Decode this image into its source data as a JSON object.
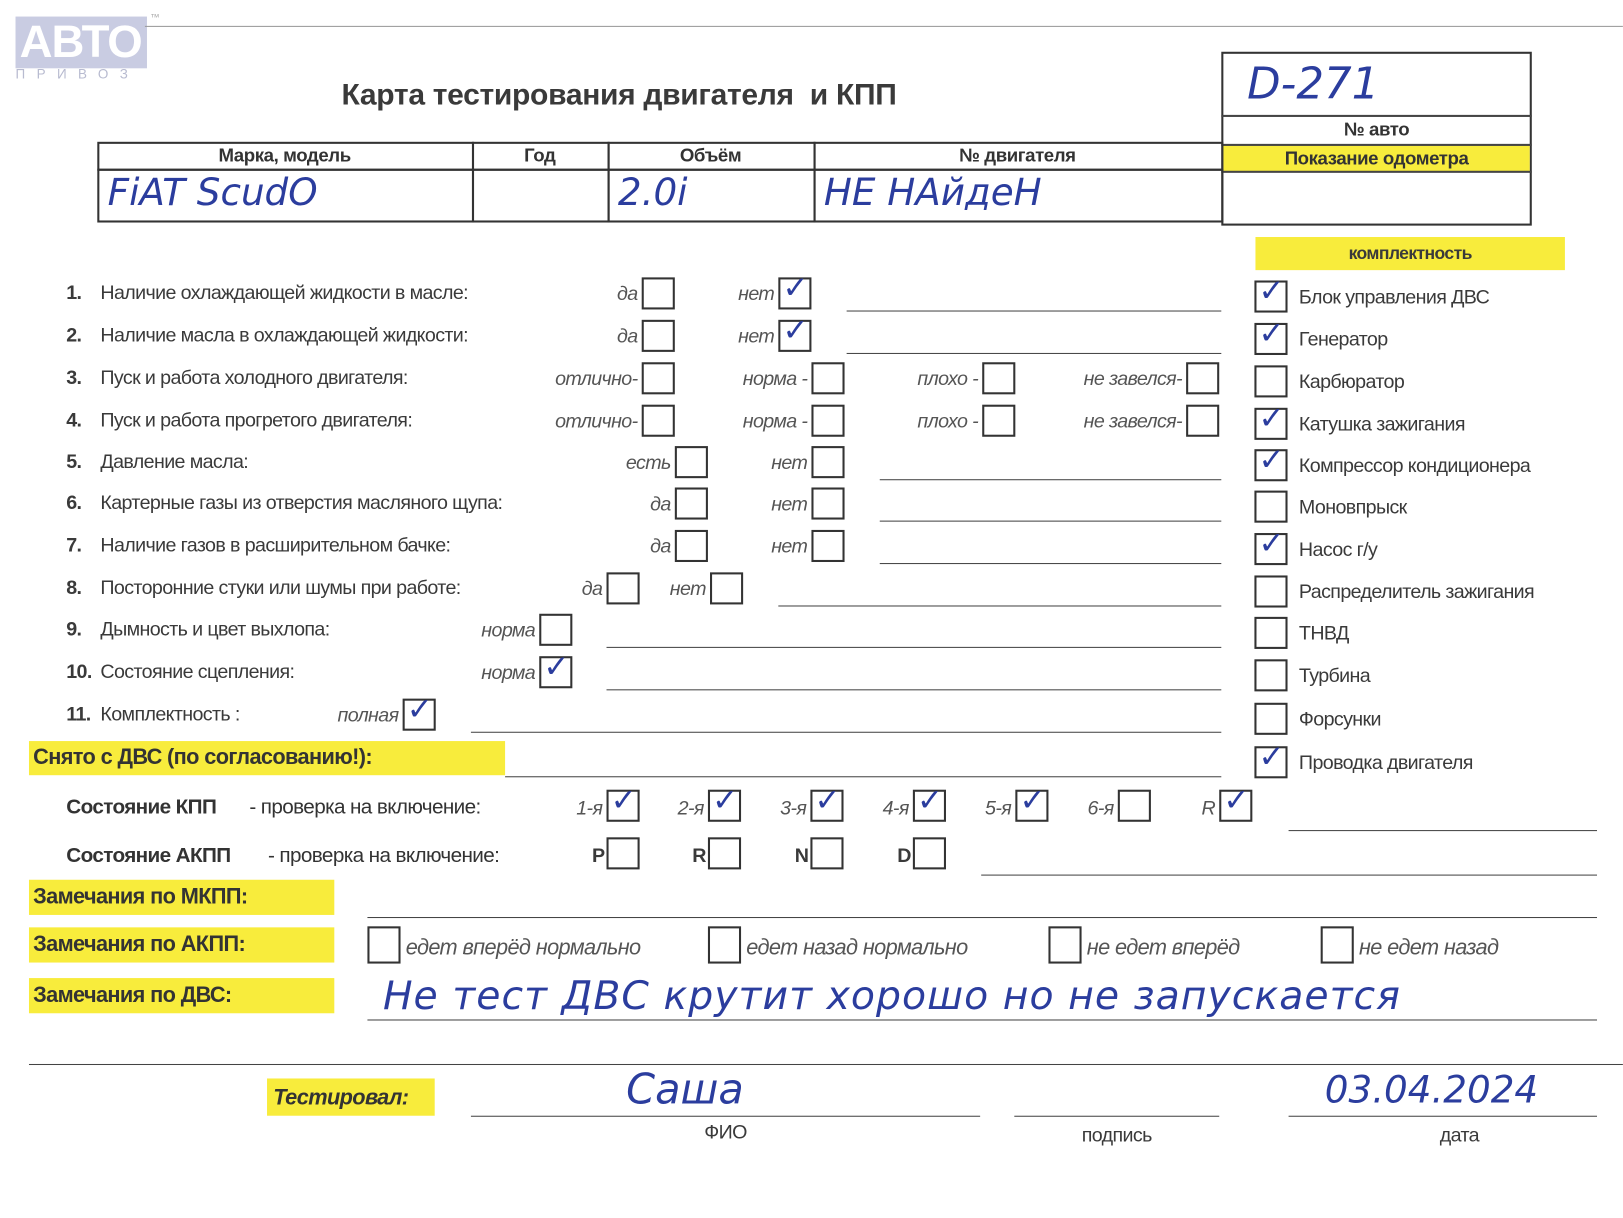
{
  "logo": {
    "text": "АВТО",
    "sub": "ПРИВОЗ",
    "tm": "™"
  },
  "title": "Карта тестирования двигателя  и КПП",
  "car_number": {
    "value": "D-271",
    "label": "№ авто"
  },
  "odometer": {
    "label": "Показание одометра",
    "value": ""
  },
  "vehicle_table": {
    "headers": [
      "Марка, модель",
      "Год",
      "Объём",
      "№ двигателя"
    ],
    "values": [
      "FiAT ScudO",
      "",
      "2.0i",
      "НЕ НАйдеН"
    ]
  },
  "questions": [
    {
      "num": "1.",
      "text": "Наличие охлаждающей жидкости в масле:",
      "options": [
        {
          "label": "да",
          "checked": false
        },
        {
          "label": "нет",
          "checked": true
        }
      ]
    },
    {
      "num": "2.",
      "text": "Наличие масла в охлаждающей жидкости:",
      "options": [
        {
          "label": "да",
          "checked": false
        },
        {
          "label": "нет",
          "checked": true
        }
      ]
    },
    {
      "num": "3.",
      "text": "Пуск и работа холодного двигателя:",
      "options": [
        {
          "label": "отлично-",
          "checked": false
        },
        {
          "label": "норма -",
          "checked": false
        },
        {
          "label": "плохо -",
          "checked": false
        },
        {
          "label": "не завелся-",
          "checked": false
        }
      ]
    },
    {
      "num": "4.",
      "text": "Пуск и работа прогретого двигателя:",
      "options": [
        {
          "label": "отлично-",
          "checked": false
        },
        {
          "label": "норма -",
          "checked": false
        },
        {
          "label": "плохо -",
          "checked": false
        },
        {
          "label": "не завелся-",
          "checked": false
        }
      ]
    },
    {
      "num": "5.",
      "text": "Давление масла:",
      "options": [
        {
          "label": "есть",
          "checked": false
        },
        {
          "label": "нет",
          "checked": false
        }
      ]
    },
    {
      "num": "6.",
      "text": "Картерные газы из отверстия масляного щупа:",
      "options": [
        {
          "label": "да",
          "checked": false
        },
        {
          "label": "нет",
          "checked": false
        }
      ]
    },
    {
      "num": "7.",
      "text": "Наличие газов в расширительном бачке:",
      "options": [
        {
          "label": "да",
          "checked": false
        },
        {
          "label": "нет",
          "checked": false
        }
      ]
    },
    {
      "num": "8.",
      "text": "Посторонние стуки или шумы при работе:",
      "options": [
        {
          "label": "да",
          "checked": false
        },
        {
          "label": "нет",
          "checked": false
        }
      ]
    },
    {
      "num": "9.",
      "text": "Дымность и цвет выхлопа:",
      "options": [
        {
          "label": "норма",
          "checked": false
        }
      ]
    },
    {
      "num": "10.",
      "text": "Состояние сцепления:",
      "options": [
        {
          "label": "норма",
          "checked": true
        }
      ]
    },
    {
      "num": "11.",
      "text": "Комплектность :",
      "options": [
        {
          "label": "полная",
          "checked": true
        }
      ]
    }
  ],
  "completeness": {
    "title": "комплектность",
    "items": [
      {
        "label": "Блок управления ДВС",
        "checked": true
      },
      {
        "label": "Генератор",
        "checked": true
      },
      {
        "label": "Карбюратор",
        "checked": false
      },
      {
        "label": "Катушка зажигания",
        "checked": true
      },
      {
        "label": "Компрессор кондиционера",
        "checked": true
      },
      {
        "label": "Моновпрыск",
        "checked": false
      },
      {
        "label": "Насос г/у",
        "checked": true
      },
      {
        "label": "Распределитель зажигания",
        "checked": false
      },
      {
        "label": "ТНВД",
        "checked": false
      },
      {
        "label": "Турбина",
        "checked": false
      },
      {
        "label": "Форсунки",
        "checked": false
      },
      {
        "label": "Проводка двигателя",
        "checked": true
      }
    ]
  },
  "removed_label": "Снято с ДВС (по согласованию!):",
  "mkpp": {
    "label_bold": "Состояние КПП",
    "label_rest": " - проверка на включение:",
    "gears": [
      {
        "label": "1-я",
        "checked": true
      },
      {
        "label": "2-я",
        "checked": true
      },
      {
        "label": "3-я",
        "checked": true
      },
      {
        "label": "4-я",
        "checked": true
      },
      {
        "label": "5-я",
        "checked": true
      },
      {
        "label": "6-я",
        "checked": false
      },
      {
        "label": "R",
        "checked": true
      }
    ]
  },
  "akpp": {
    "label_bold": "Состояние АКПП",
    "label_rest": " - проверка на включение:",
    "modes": [
      {
        "label": "P",
        "checked": false
      },
      {
        "label": "R",
        "checked": false
      },
      {
        "label": "N",
        "checked": false
      },
      {
        "label": "D",
        "checked": false
      }
    ]
  },
  "remarks": {
    "mkpp_label": "Замечания по МКПП:",
    "akpp_label": "Замечания по АКПП:",
    "akpp_options": [
      {
        "label": "едет вперёд нормально",
        "checked": false
      },
      {
        "label": "едет назад нормально",
        "checked": false
      },
      {
        "label": "не едет вперёд",
        "checked": false
      },
      {
        "label": "не едет назад",
        "checked": false
      }
    ],
    "dvs_label": "Замечания по ДВС:",
    "dvs_text": "Не тест ДВС крутит хорошо но не запускается"
  },
  "tested": {
    "label": "Тестировал:",
    "name": "Саша",
    "name_caption": "ФИО",
    "signature_caption": "подпись",
    "date": "03.04.2024",
    "date_caption": "дата"
  },
  "colors": {
    "highlight": "#f8ec3c",
    "ink": "#2b3d9e"
  }
}
